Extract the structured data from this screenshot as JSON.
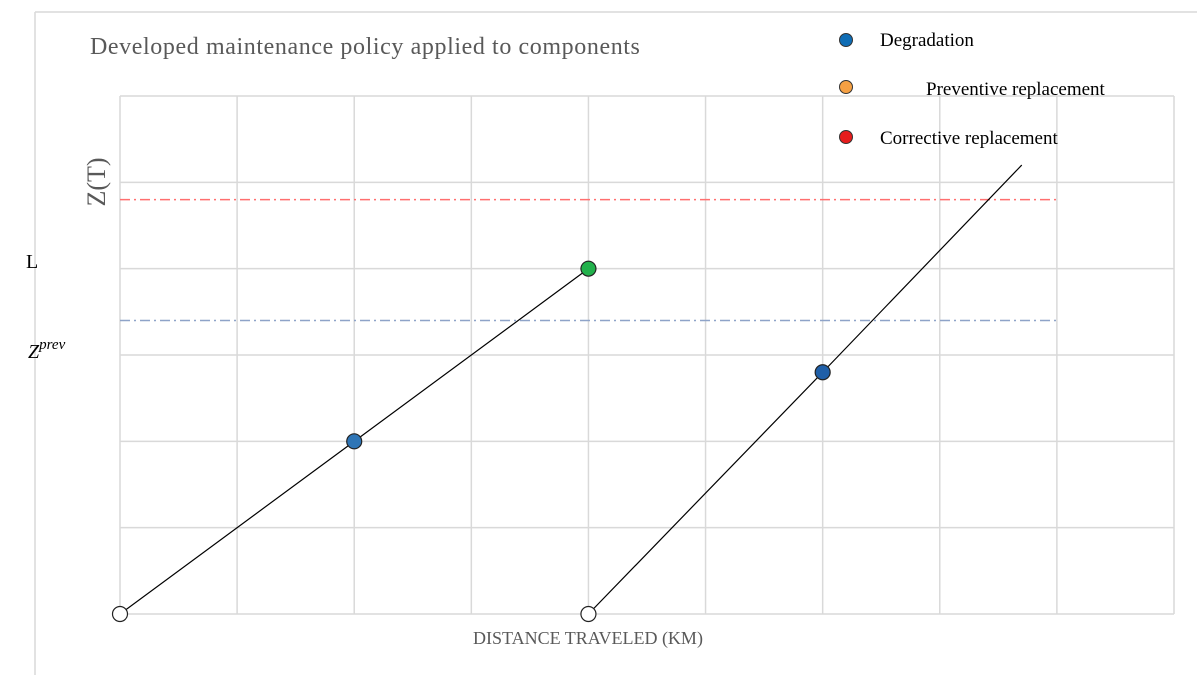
{
  "chart_data": {
    "type": "line",
    "title": "Developed maintenance policy applied to components",
    "xlabel": "DISTANCE TRAVELED (KM)",
    "ylabel": "Z(T)",
    "xlim": [
      0,
      9
    ],
    "ylim": [
      0,
      6
    ],
    "x_gridlines": [
      0,
      1,
      2,
      3,
      4,
      5,
      6,
      7,
      8,
      9
    ],
    "y_gridlines": [
      0,
      1,
      2,
      3,
      4,
      5,
      6
    ],
    "thresholds": [
      {
        "label": "L",
        "y": 4.8,
        "color": "#ff6f6f",
        "style": "dash-dot"
      },
      {
        "label": "Z^prev",
        "y": 3.4,
        "color": "#8ea3c8",
        "style": "dash-dot"
      }
    ],
    "series": [
      {
        "x": [
          0,
          2,
          4
        ],
        "y": [
          0,
          2,
          4
        ]
      },
      {
        "x": [
          4,
          6,
          7.7
        ],
        "y": [
          0,
          2.8,
          5.2
        ]
      }
    ],
    "points": [
      {
        "x": 0,
        "y": 0,
        "kind": "start",
        "color": "#ffffff"
      },
      {
        "x": 2,
        "y": 2,
        "kind": "degradation",
        "color": "#2e75b6"
      },
      {
        "x": 4,
        "y": 4,
        "kind": "preventive",
        "color": "#22b14c"
      },
      {
        "x": 4,
        "y": 0,
        "kind": "start",
        "color": "#ffffff"
      },
      {
        "x": 6,
        "y": 2.8,
        "kind": "degradation",
        "color": "#1f5fa8"
      }
    ],
    "legend": {
      "position": "top-right",
      "items": [
        {
          "label": "Degradation",
          "color": "#0f6db5"
        },
        {
          "label": "Preventive replacement",
          "color": "#f5a043"
        },
        {
          "label": "Corrective replacement",
          "color": "#e61c1c"
        }
      ]
    }
  },
  "side_labels": {
    "L": "L",
    "zprev_base": "Z",
    "zprev_sup": "prev"
  }
}
